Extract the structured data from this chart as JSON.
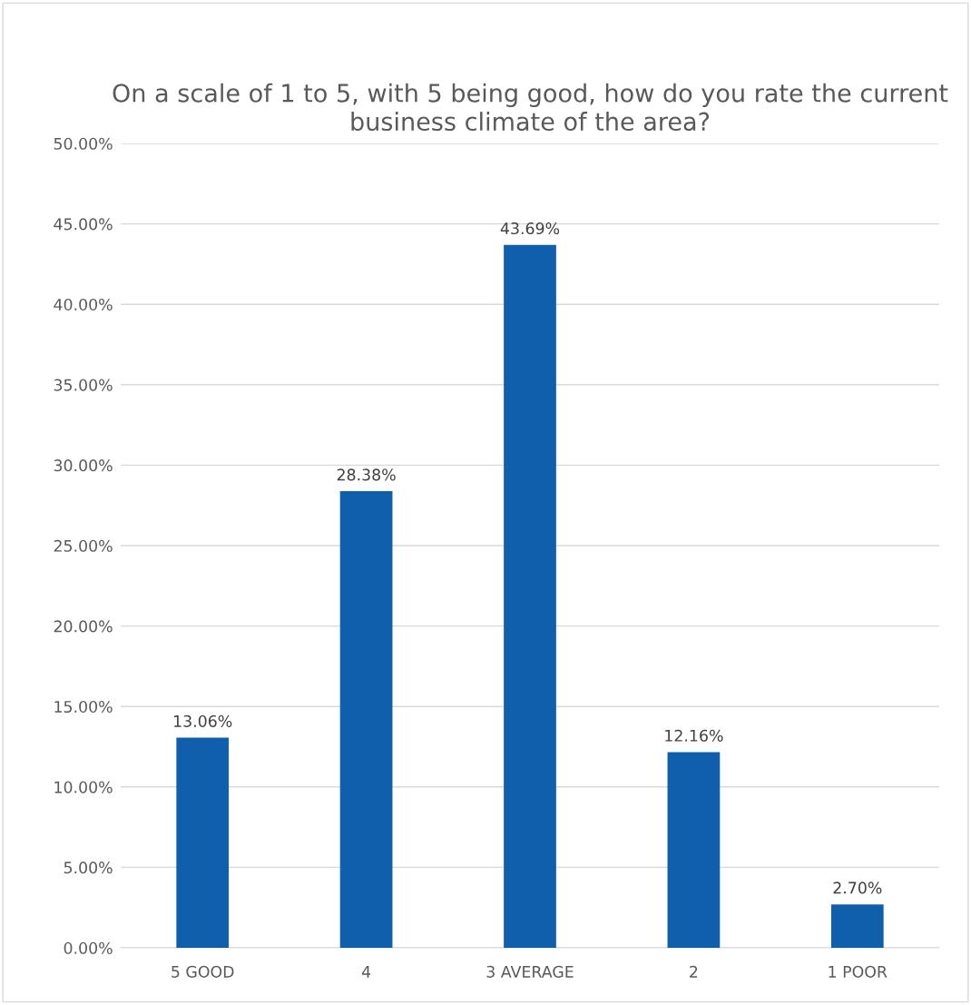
{
  "chart_data": {
    "type": "bar",
    "title": "On a scale of 1 to 5, with 5 being good, how do you rate the current business climate of the area?",
    "categories": [
      "5 GOOD",
      "4",
      "3 AVERAGE",
      "2",
      "1 POOR"
    ],
    "values": [
      13.06,
      28.38,
      43.69,
      12.16,
      2.7
    ],
    "value_labels": [
      "13.06%",
      "28.38%",
      "43.69%",
      "12.16%",
      "2.70%"
    ],
    "color": "#0f5fac",
    "ylim": [
      0,
      50
    ],
    "yticks": [
      {
        "value": 0,
        "label": "0.00%"
      },
      {
        "value": 5,
        "label": "5.00%"
      },
      {
        "value": 10,
        "label": "10.00%"
      },
      {
        "value": 15,
        "label": "15.00%"
      },
      {
        "value": 20,
        "label": "20.00%"
      },
      {
        "value": 25,
        "label": "25.00%"
      },
      {
        "value": 30,
        "label": "30.00%"
      },
      {
        "value": 35,
        "label": "35.00%"
      },
      {
        "value": 40,
        "label": "40.00%"
      },
      {
        "value": 45,
        "label": "45.00%"
      },
      {
        "value": 50,
        "label": "50.00%"
      }
    ],
    "grid": "y"
  }
}
